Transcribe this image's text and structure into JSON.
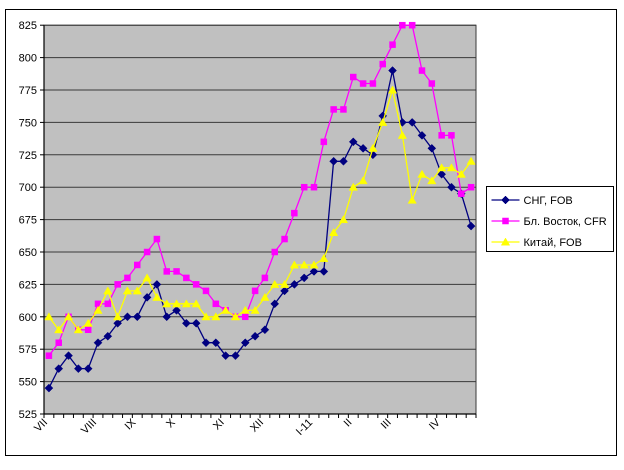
{
  "chart_data": {
    "type": "line",
    "title": "",
    "xlabel": "",
    "ylabel": "",
    "ylim": [
      525,
      825
    ],
    "y_step": 25,
    "grid": "horizontal",
    "plot_background": "#c0c0c0",
    "frame_color": "#000000",
    "grid_color": "#3a3a3a",
    "legend_position": "right",
    "x_axis": {
      "months": [
        {
          "label": "VII",
          "weeks": 5
        },
        {
          "label": "VIII",
          "weeks": 4
        },
        {
          "label": "IX",
          "weeks": 4
        },
        {
          "label": "X",
          "weeks": 5
        },
        {
          "label": "XI",
          "weeks": 4
        },
        {
          "label": "XII",
          "weeks": 5
        },
        {
          "label": "I-11",
          "weeks": 4
        },
        {
          "label": "II",
          "weeks": 4
        },
        {
          "label": "III",
          "weeks": 5
        },
        {
          "label": "IV",
          "weeks": 4
        }
      ]
    },
    "series": [
      {
        "name": "СНГ, FOB",
        "color": "#000080",
        "marker": "diamond",
        "values": [
          545,
          560,
          570,
          560,
          560,
          580,
          585,
          595,
          600,
          600,
          615,
          625,
          600,
          605,
          595,
          595,
          580,
          580,
          570,
          570,
          580,
          585,
          590,
          610,
          620,
          625,
          630,
          635,
          635,
          720,
          720,
          735,
          730,
          725,
          755,
          790,
          750,
          750,
          740,
          730,
          710,
          700,
          695,
          670
        ]
      },
      {
        "name": "Бл. Восток, CFR",
        "color": "#ff00ff",
        "marker": "square",
        "values": [
          570,
          580,
          600,
          590,
          590,
          610,
          610,
          625,
          630,
          640,
          650,
          660,
          635,
          635,
          630,
          625,
          620,
          610,
          605,
          600,
          600,
          620,
          630,
          650,
          660,
          680,
          700,
          700,
          735,
          760,
          760,
          785,
          780,
          780,
          795,
          810,
          825,
          825,
          790,
          780,
          740,
          740,
          695,
          700
        ]
      },
      {
        "name": "Китай, FOB",
        "color": "#ffff00",
        "marker": "triangle",
        "values": [
          600,
          590,
          600,
          590,
          595,
          605,
          620,
          600,
          620,
          620,
          630,
          615,
          610,
          610,
          610,
          610,
          600,
          600,
          605,
          600,
          605,
          605,
          615,
          625,
          625,
          640,
          640,
          640,
          645,
          665,
          675,
          700,
          705,
          730,
          750,
          775,
          740,
          690,
          710,
          705,
          715,
          715,
          710,
          720
        ]
      }
    ]
  }
}
